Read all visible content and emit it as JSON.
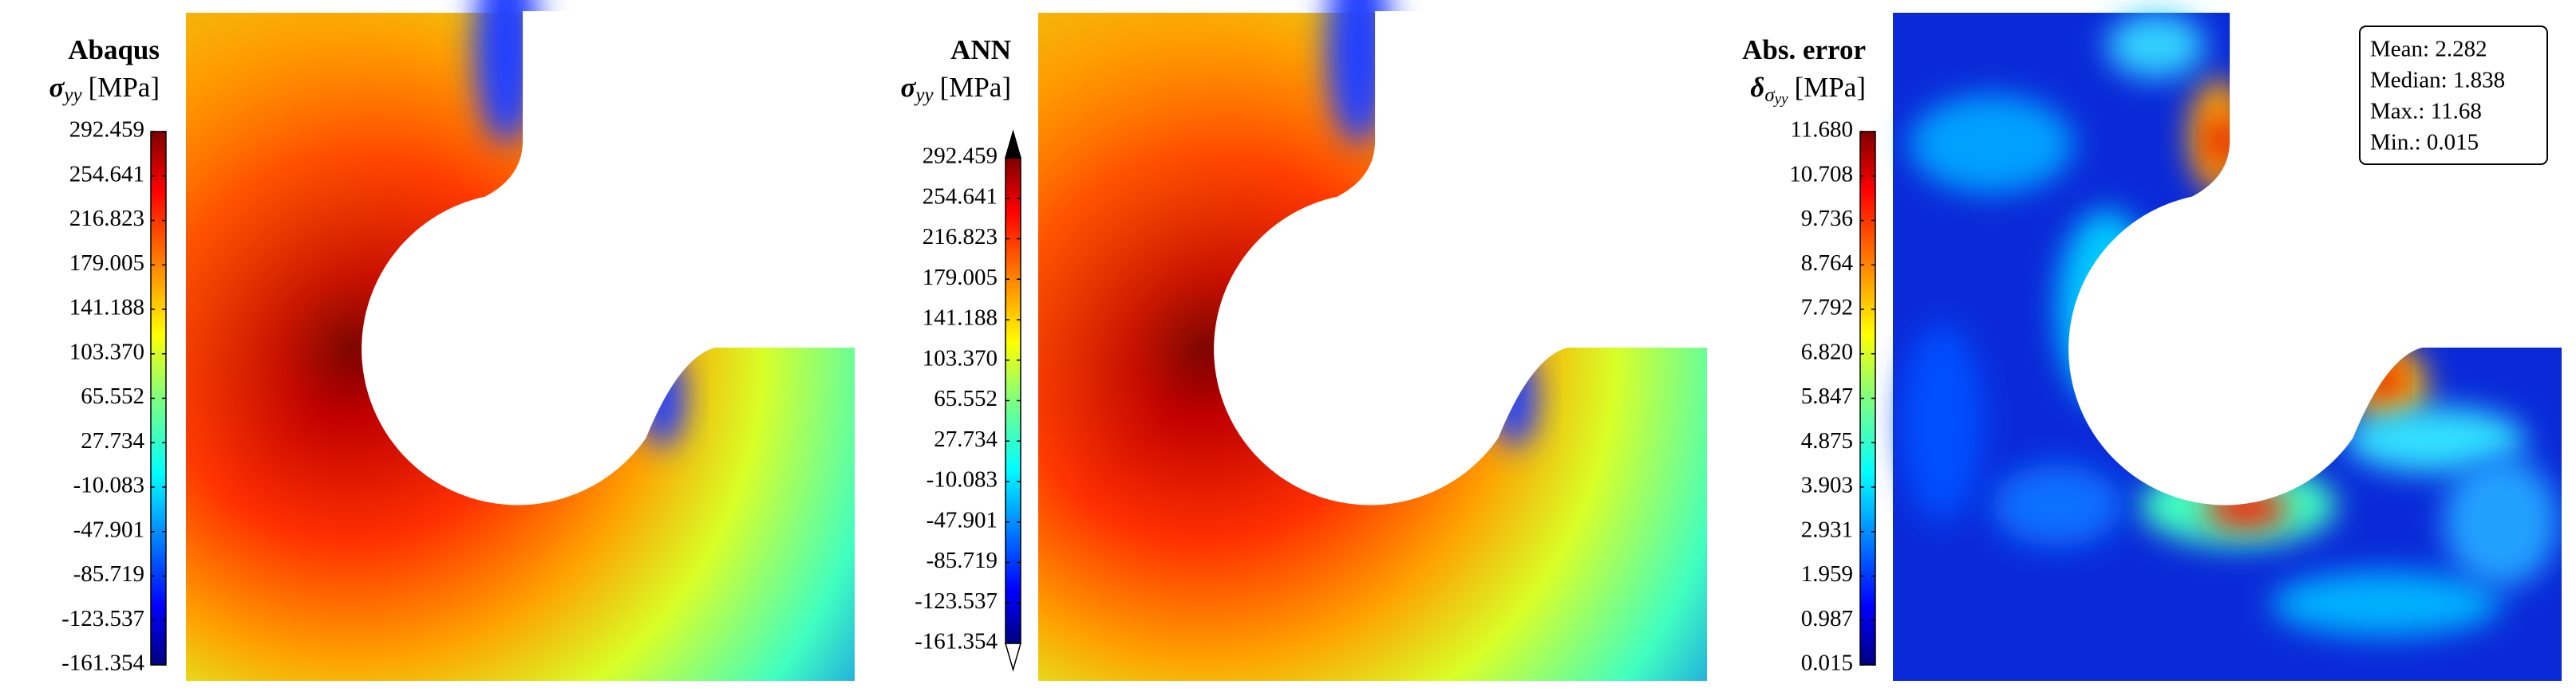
{
  "chart_data": [
    {
      "type": "contour",
      "title": "Abaqus",
      "colorbar_label": {
        "symbol": "σ",
        "subscript": "yy",
        "unit": "[MPa]"
      },
      "colormap": "jet",
      "zlim": [
        -161.354,
        292.459
      ],
      "zticks": [
        -161.354,
        -123.537,
        -85.719,
        -47.901,
        -10.083,
        27.734,
        65.552,
        {
          "value": 103.37,
          "label": "103.370"
        },
        141.188,
        179.005,
        216.823,
        254.641,
        292.459
      ]
    },
    {
      "type": "contour",
      "title": "ANN",
      "colorbar_label": {
        "symbol": "σ",
        "subscript": "yy",
        "unit": "[MPa]"
      },
      "colormap": "jet",
      "extend": "both",
      "zlim": [
        -161.354,
        292.459
      ],
      "zticks": [
        -161.354,
        -123.537,
        -85.719,
        -47.901,
        -10.083,
        27.734,
        65.552,
        {
          "value": 103.37,
          "label": "103.370"
        },
        141.188,
        179.005,
        216.823,
        254.641,
        292.459
      ]
    },
    {
      "type": "error",
      "title": "Abs. error",
      "colorbar_label": {
        "symbol": "δ",
        "subscript": "σ",
        "subsubscript": "yy",
        "unit": "[MPa]"
      },
      "colormap": "jet",
      "zlim": [
        0.015,
        11.68
      ],
      "zticks": [
        0.015,
        0.987,
        1.959,
        2.931,
        3.903,
        4.875,
        5.847,
        {
          "value": 6.82,
          "label": "6.820"
        },
        7.792,
        8.764,
        9.736,
        10.708,
        {
          "value": 11.68,
          "label": "11.680"
        }
      ],
      "annotations": [
        "Mean: 2.282",
        "Median: 1.838",
        "Max.: 11.68",
        "Min.: 0.015"
      ]
    }
  ]
}
